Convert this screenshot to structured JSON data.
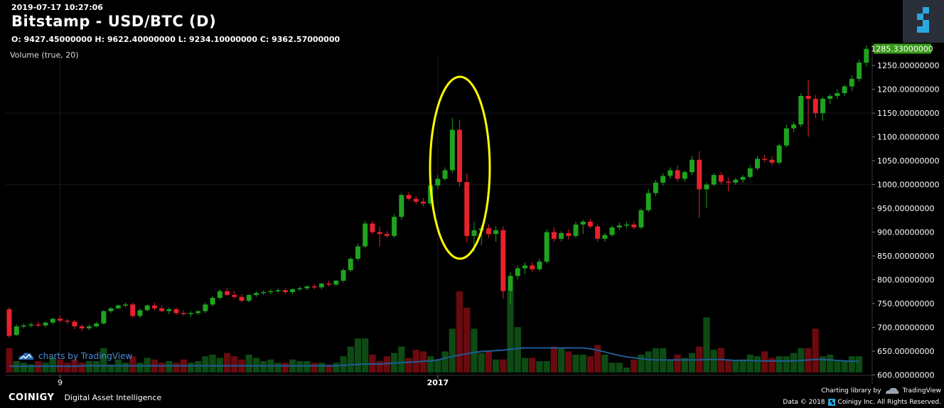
{
  "header": {
    "datetime": "2019-07-17 10:27:06",
    "title": "Bitstamp - USD/BTC (D)",
    "ohlc_line": "O: 9427.45000000 H: 9622.40000000 L: 9234.10000000 C: 9362.57000000",
    "volume_indicator": "Volume (true, 20)"
  },
  "watermark": {
    "text": "charts by TradingView"
  },
  "footer": {
    "brand": "COINIGY",
    "tagline": "Digital Asset Intelligence",
    "charting_library": "Charting library by",
    "tradingview": "TradingView",
    "copyright_prefix": "Data © 2018",
    "copyright_suffix": "Coinigy Inc. All Rights Reserved."
  },
  "colors": {
    "up": "#1fa31f",
    "down": "#e8222b",
    "volume_up": "#0e4a14",
    "volume_down": "#6a0a0f",
    "volume_ma": "#1e5c96",
    "last_price_bg": "#3a9a1a",
    "annotation": "#ffff00"
  },
  "chart_data": {
    "type": "candlestick",
    "y_axis_labels": [
      "600.00000000",
      "650.00000000",
      "700.00000000",
      "750.00000000",
      "800.00000000",
      "850.00000000",
      "900.00000000",
      "950.00000000",
      "1000.00000000",
      "1050.00000000",
      "1100.00000000",
      "1150.00000000",
      "1200.00000000",
      "1250.00000000"
    ],
    "x_axis_labels": [
      {
        "label": "9",
        "index": 7
      },
      {
        "label": "2017",
        "index": 59
      }
    ],
    "ylim": [
      550,
      1292
    ],
    "last_price": 1285.33,
    "last_price_label": "1285.33000000",
    "annotation": "ellipse around the spike and drop near early January 2017",
    "candles": [
      {
        "o": 738,
        "h": 742,
        "l": 678,
        "c": 682
      },
      {
        "o": 684,
        "h": 706,
        "l": 682,
        "c": 702
      },
      {
        "o": 702,
        "h": 708,
        "l": 698,
        "c": 704
      },
      {
        "o": 704,
        "h": 710,
        "l": 700,
        "c": 706
      },
      {
        "o": 706,
        "h": 712,
        "l": 700,
        "c": 704
      },
      {
        "o": 704,
        "h": 712,
        "l": 700,
        "c": 710
      },
      {
        "o": 710,
        "h": 720,
        "l": 706,
        "c": 718
      },
      {
        "o": 718,
        "h": 724,
        "l": 710,
        "c": 714
      },
      {
        "o": 714,
        "h": 718,
        "l": 706,
        "c": 712
      },
      {
        "o": 712,
        "h": 716,
        "l": 696,
        "c": 702
      },
      {
        "o": 702,
        "h": 706,
        "l": 692,
        "c": 698
      },
      {
        "o": 698,
        "h": 706,
        "l": 694,
        "c": 702
      },
      {
        "o": 702,
        "h": 712,
        "l": 700,
        "c": 708
      },
      {
        "o": 708,
        "h": 736,
        "l": 706,
        "c": 734
      },
      {
        "o": 734,
        "h": 742,
        "l": 730,
        "c": 740
      },
      {
        "o": 740,
        "h": 748,
        "l": 738,
        "c": 746
      },
      {
        "o": 746,
        "h": 752,
        "l": 742,
        "c": 748
      },
      {
        "o": 748,
        "h": 752,
        "l": 720,
        "c": 724
      },
      {
        "o": 724,
        "h": 740,
        "l": 720,
        "c": 736
      },
      {
        "o": 736,
        "h": 748,
        "l": 734,
        "c": 746
      },
      {
        "o": 746,
        "h": 752,
        "l": 736,
        "c": 740
      },
      {
        "o": 740,
        "h": 746,
        "l": 732,
        "c": 734
      },
      {
        "o": 734,
        "h": 742,
        "l": 728,
        "c": 738
      },
      {
        "o": 738,
        "h": 742,
        "l": 726,
        "c": 730
      },
      {
        "o": 730,
        "h": 736,
        "l": 724,
        "c": 728
      },
      {
        "o": 728,
        "h": 734,
        "l": 722,
        "c": 730
      },
      {
        "o": 730,
        "h": 736,
        "l": 726,
        "c": 734
      },
      {
        "o": 734,
        "h": 752,
        "l": 730,
        "c": 748
      },
      {
        "o": 748,
        "h": 766,
        "l": 744,
        "c": 762
      },
      {
        "o": 762,
        "h": 780,
        "l": 758,
        "c": 776
      },
      {
        "o": 776,
        "h": 782,
        "l": 766,
        "c": 768
      },
      {
        "o": 768,
        "h": 776,
        "l": 760,
        "c": 764
      },
      {
        "o": 764,
        "h": 770,
        "l": 752,
        "c": 756
      },
      {
        "o": 756,
        "h": 770,
        "l": 752,
        "c": 768
      },
      {
        "o": 768,
        "h": 776,
        "l": 764,
        "c": 772
      },
      {
        "o": 772,
        "h": 778,
        "l": 768,
        "c": 774
      },
      {
        "o": 774,
        "h": 780,
        "l": 770,
        "c": 776
      },
      {
        "o": 776,
        "h": 782,
        "l": 772,
        "c": 778
      },
      {
        "o": 778,
        "h": 782,
        "l": 770,
        "c": 774
      },
      {
        "o": 774,
        "h": 782,
        "l": 770,
        "c": 780
      },
      {
        "o": 780,
        "h": 786,
        "l": 776,
        "c": 782
      },
      {
        "o": 782,
        "h": 788,
        "l": 778,
        "c": 786
      },
      {
        "o": 786,
        "h": 790,
        "l": 780,
        "c": 784
      },
      {
        "o": 784,
        "h": 794,
        "l": 780,
        "c": 792
      },
      {
        "o": 792,
        "h": 798,
        "l": 786,
        "c": 790
      },
      {
        "o": 790,
        "h": 800,
        "l": 786,
        "c": 798
      },
      {
        "o": 798,
        "h": 824,
        "l": 794,
        "c": 820
      },
      {
        "o": 820,
        "h": 848,
        "l": 816,
        "c": 844
      },
      {
        "o": 844,
        "h": 876,
        "l": 840,
        "c": 870
      },
      {
        "o": 870,
        "h": 924,
        "l": 866,
        "c": 918
      },
      {
        "o": 918,
        "h": 924,
        "l": 896,
        "c": 900
      },
      {
        "o": 900,
        "h": 912,
        "l": 870,
        "c": 896
      },
      {
        "o": 896,
        "h": 902,
        "l": 888,
        "c": 892
      },
      {
        "o": 892,
        "h": 938,
        "l": 888,
        "c": 932
      },
      {
        "o": 932,
        "h": 982,
        "l": 926,
        "c": 978
      },
      {
        "o": 978,
        "h": 984,
        "l": 966,
        "c": 970
      },
      {
        "o": 970,
        "h": 976,
        "l": 958,
        "c": 964
      },
      {
        "o": 964,
        "h": 972,
        "l": 954,
        "c": 960
      },
      {
        "o": 960,
        "h": 1000,
        "l": 954,
        "c": 998
      },
      {
        "o": 998,
        "h": 1020,
        "l": 990,
        "c": 1012
      },
      {
        "o": 1012,
        "h": 1036,
        "l": 1008,
        "c": 1030
      },
      {
        "o": 1030,
        "h": 1140,
        "l": 1024,
        "c": 1115
      },
      {
        "o": 1115,
        "h": 1135,
        "l": 995,
        "c": 1005
      },
      {
        "o": 1005,
        "h": 1024,
        "l": 878,
        "c": 892
      },
      {
        "o": 892,
        "h": 922,
        "l": 858,
        "c": 904
      },
      {
        "o": 904,
        "h": 914,
        "l": 872,
        "c": 908
      },
      {
        "o": 908,
        "h": 916,
        "l": 888,
        "c": 896
      },
      {
        "o": 896,
        "h": 912,
        "l": 880,
        "c": 904
      },
      {
        "o": 904,
        "h": 912,
        "l": 760,
        "c": 776
      },
      {
        "o": 776,
        "h": 816,
        "l": 750,
        "c": 808
      },
      {
        "o": 808,
        "h": 830,
        "l": 800,
        "c": 824
      },
      {
        "o": 824,
        "h": 836,
        "l": 812,
        "c": 830
      },
      {
        "o": 830,
        "h": 836,
        "l": 816,
        "c": 822
      },
      {
        "o": 822,
        "h": 844,
        "l": 818,
        "c": 838
      },
      {
        "o": 838,
        "h": 906,
        "l": 834,
        "c": 900
      },
      {
        "o": 900,
        "h": 910,
        "l": 880,
        "c": 886
      },
      {
        "o": 886,
        "h": 902,
        "l": 880,
        "c": 898
      },
      {
        "o": 898,
        "h": 906,
        "l": 884,
        "c": 892
      },
      {
        "o": 892,
        "h": 922,
        "l": 888,
        "c": 916
      },
      {
        "o": 916,
        "h": 926,
        "l": 896,
        "c": 922
      },
      {
        "o": 922,
        "h": 928,
        "l": 908,
        "c": 912
      },
      {
        "o": 912,
        "h": 916,
        "l": 880,
        "c": 886
      },
      {
        "o": 886,
        "h": 898,
        "l": 880,
        "c": 894
      },
      {
        "o": 894,
        "h": 914,
        "l": 890,
        "c": 910
      },
      {
        "o": 910,
        "h": 920,
        "l": 904,
        "c": 914
      },
      {
        "o": 914,
        "h": 922,
        "l": 908,
        "c": 916
      },
      {
        "o": 916,
        "h": 922,
        "l": 906,
        "c": 910
      },
      {
        "o": 910,
        "h": 950,
        "l": 906,
        "c": 946
      },
      {
        "o": 946,
        "h": 990,
        "l": 942,
        "c": 982
      },
      {
        "o": 982,
        "h": 1010,
        "l": 976,
        "c": 1004
      },
      {
        "o": 1004,
        "h": 1024,
        "l": 998,
        "c": 1018
      },
      {
        "o": 1018,
        "h": 1036,
        "l": 1012,
        "c": 1030
      },
      {
        "o": 1030,
        "h": 1040,
        "l": 1006,
        "c": 1012
      },
      {
        "o": 1012,
        "h": 1030,
        "l": 1006,
        "c": 1026
      },
      {
        "o": 1026,
        "h": 1060,
        "l": 1020,
        "c": 1052
      },
      {
        "o": 1052,
        "h": 1070,
        "l": 930,
        "c": 990
      },
      {
        "o": 990,
        "h": 1004,
        "l": 950,
        "c": 1000
      },
      {
        "o": 1000,
        "h": 1024,
        "l": 996,
        "c": 1020
      },
      {
        "o": 1020,
        "h": 1026,
        "l": 1000,
        "c": 1006
      },
      {
        "o": 1006,
        "h": 1014,
        "l": 986,
        "c": 1004
      },
      {
        "o": 1004,
        "h": 1014,
        "l": 1000,
        "c": 1010
      },
      {
        "o": 1010,
        "h": 1020,
        "l": 1004,
        "c": 1016
      },
      {
        "o": 1016,
        "h": 1040,
        "l": 1012,
        "c": 1034
      },
      {
        "o": 1034,
        "h": 1060,
        "l": 1030,
        "c": 1054
      },
      {
        "o": 1054,
        "h": 1062,
        "l": 1046,
        "c": 1052
      },
      {
        "o": 1052,
        "h": 1060,
        "l": 1040,
        "c": 1046
      },
      {
        "o": 1046,
        "h": 1086,
        "l": 1042,
        "c": 1082
      },
      {
        "o": 1082,
        "h": 1126,
        "l": 1078,
        "c": 1118
      },
      {
        "o": 1118,
        "h": 1132,
        "l": 1110,
        "c": 1126
      },
      {
        "o": 1126,
        "h": 1192,
        "l": 1120,
        "c": 1186
      },
      {
        "o": 1186,
        "h": 1220,
        "l": 1100,
        "c": 1180
      },
      {
        "o": 1180,
        "h": 1188,
        "l": 1140,
        "c": 1150
      },
      {
        "o": 1150,
        "h": 1184,
        "l": 1134,
        "c": 1180
      },
      {
        "o": 1180,
        "h": 1190,
        "l": 1170,
        "c": 1186
      },
      {
        "o": 1186,
        "h": 1200,
        "l": 1180,
        "c": 1192
      },
      {
        "o": 1192,
        "h": 1210,
        "l": 1186,
        "c": 1206
      },
      {
        "o": 1206,
        "h": 1230,
        "l": 1196,
        "c": 1222
      },
      {
        "o": 1222,
        "h": 1262,
        "l": 1216,
        "c": 1256
      },
      {
        "o": 1256,
        "h": 1292,
        "l": 1248,
        "c": 1285
      }
    ],
    "volume": [
      0.3,
      0.14,
      0.12,
      0.1,
      0.14,
      0.12,
      0.18,
      0.16,
      0.12,
      0.16,
      0.12,
      0.14,
      0.14,
      0.3,
      0.1,
      0.16,
      0.12,
      0.2,
      0.12,
      0.18,
      0.16,
      0.12,
      0.14,
      0.12,
      0.16,
      0.12,
      0.14,
      0.2,
      0.22,
      0.18,
      0.24,
      0.2,
      0.16,
      0.22,
      0.18,
      0.14,
      0.16,
      0.12,
      0.12,
      0.16,
      0.14,
      0.14,
      0.12,
      0.12,
      0.1,
      0.12,
      0.2,
      0.32,
      0.42,
      0.42,
      0.22,
      0.14,
      0.2,
      0.24,
      0.32,
      0.18,
      0.28,
      0.26,
      0.2,
      0.16,
      0.26,
      0.54,
      1.0,
      0.8,
      0.54,
      0.24,
      0.26,
      0.16,
      0.16,
      1.0,
      0.56,
      0.18,
      0.18,
      0.14,
      0.14,
      0.32,
      0.3,
      0.26,
      0.22,
      0.22,
      0.2,
      0.34,
      0.22,
      0.12,
      0.12,
      0.06,
      0.16,
      0.22,
      0.26,
      0.3,
      0.3,
      0.16,
      0.22,
      0.18,
      0.24,
      0.32,
      0.68,
      0.28,
      0.3,
      0.16,
      0.14,
      0.16,
      0.22,
      0.2,
      0.26,
      0.18,
      0.2,
      0.2,
      0.24,
      0.3,
      0.3,
      0.54,
      0.2,
      0.22,
      0.14,
      0.14,
      0.2,
      0.2
    ],
    "volume_direction": "matches candle direction",
    "volume_ma": [
      0.14,
      0.14,
      0.14,
      0.14,
      0.14,
      0.14,
      0.14,
      0.14,
      0.14,
      0.14,
      0.15,
      0.15,
      0.15,
      0.15,
      0.15,
      0.15,
      0.15,
      0.15,
      0.15,
      0.15,
      0.15,
      0.15,
      0.15,
      0.15,
      0.15,
      0.15,
      0.15,
      0.15,
      0.15,
      0.15,
      0.15,
      0.15,
      0.15,
      0.15,
      0.15,
      0.15,
      0.15,
      0.15,
      0.15,
      0.15,
      0.15,
      0.15,
      0.15,
      0.15,
      0.15,
      0.15,
      0.16,
      0.17,
      0.18,
      0.19,
      0.19,
      0.19,
      0.2,
      0.21,
      0.22,
      0.23,
      0.24,
      0.25,
      0.26,
      0.28,
      0.32,
      0.36,
      0.39,
      0.42,
      0.45,
      0.47,
      0.48,
      0.49,
      0.5,
      0.52,
      0.54,
      0.55,
      0.55,
      0.55,
      0.55,
      0.55,
      0.55,
      0.55,
      0.55,
      0.55,
      0.53,
      0.5,
      0.46,
      0.42,
      0.38,
      0.35,
      0.33,
      0.31,
      0.29,
      0.28,
      0.28,
      0.28,
      0.28,
      0.28,
      0.28,
      0.28,
      0.29,
      0.29,
      0.29,
      0.28,
      0.27,
      0.27,
      0.27,
      0.26,
      0.26,
      0.26,
      0.26,
      0.26,
      0.26,
      0.27,
      0.28,
      0.29,
      0.29,
      0.28,
      0.27,
      0.26,
      0.25,
      0.25
    ]
  }
}
